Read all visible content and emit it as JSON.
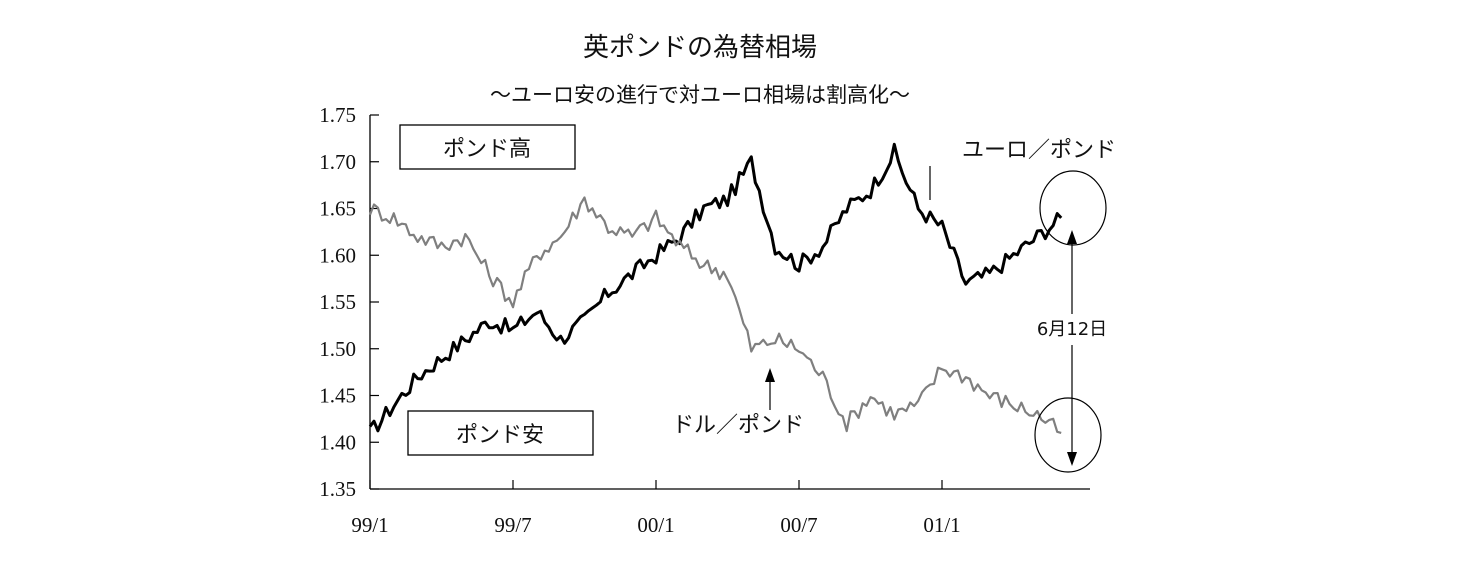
{
  "chart_data": {
    "type": "line",
    "title": "英ポンドの為替相場",
    "subtitle": "～ユーロ安の進行で対ユーロ相場は割高化～",
    "xlabel": "",
    "ylabel": "",
    "ylim": [
      1.35,
      1.75
    ],
    "y_ticks": [
      "1.35",
      "1.40",
      "1.45",
      "1.50",
      "1.55",
      "1.60",
      "1.65",
      "1.70",
      "1.75"
    ],
    "x_ticks": [
      "99/1",
      "99/7",
      "00/1",
      "00/7",
      "01/1"
    ],
    "grid": false,
    "x": [
      "99/1",
      "99/2",
      "99/3",
      "99/4",
      "99/5",
      "99/6",
      "99/7",
      "99/8",
      "99/9",
      "99/10",
      "99/11",
      "99/12",
      "00/1",
      "00/2",
      "00/3",
      "00/4",
      "00/5",
      "00/6",
      "00/7",
      "00/8",
      "00/9",
      "00/10",
      "00/11",
      "00/12",
      "01/1",
      "01/2",
      "01/3",
      "01/4",
      "01/5",
      "01/6"
    ],
    "series": [
      {
        "name": "ユーロ／ポンド",
        "color": "#000000",
        "values": [
          1.41,
          1.44,
          1.47,
          1.49,
          1.51,
          1.53,
          1.52,
          1.54,
          1.51,
          1.53,
          1.56,
          1.58,
          1.6,
          1.62,
          1.65,
          1.66,
          1.7,
          1.61,
          1.59,
          1.61,
          1.65,
          1.67,
          1.71,
          1.65,
          1.63,
          1.57,
          1.58,
          1.6,
          1.62,
          1.64
        ]
      },
      {
        "name": "ドル／ポンド",
        "color": "#7f7f7f",
        "values": [
          1.65,
          1.64,
          1.62,
          1.61,
          1.62,
          1.58,
          1.55,
          1.6,
          1.62,
          1.66,
          1.63,
          1.62,
          1.64,
          1.61,
          1.59,
          1.58,
          1.5,
          1.51,
          1.5,
          1.47,
          1.42,
          1.45,
          1.43,
          1.44,
          1.48,
          1.47,
          1.45,
          1.44,
          1.43,
          1.41
        ]
      }
    ],
    "annotations": {
      "pound_high": "ポンド高",
      "pound_low": "ポンド安",
      "euro_label": "ユーロ／ポンド",
      "dollar_label": "ドル／ポンド",
      "date_label": "6月12日"
    }
  }
}
